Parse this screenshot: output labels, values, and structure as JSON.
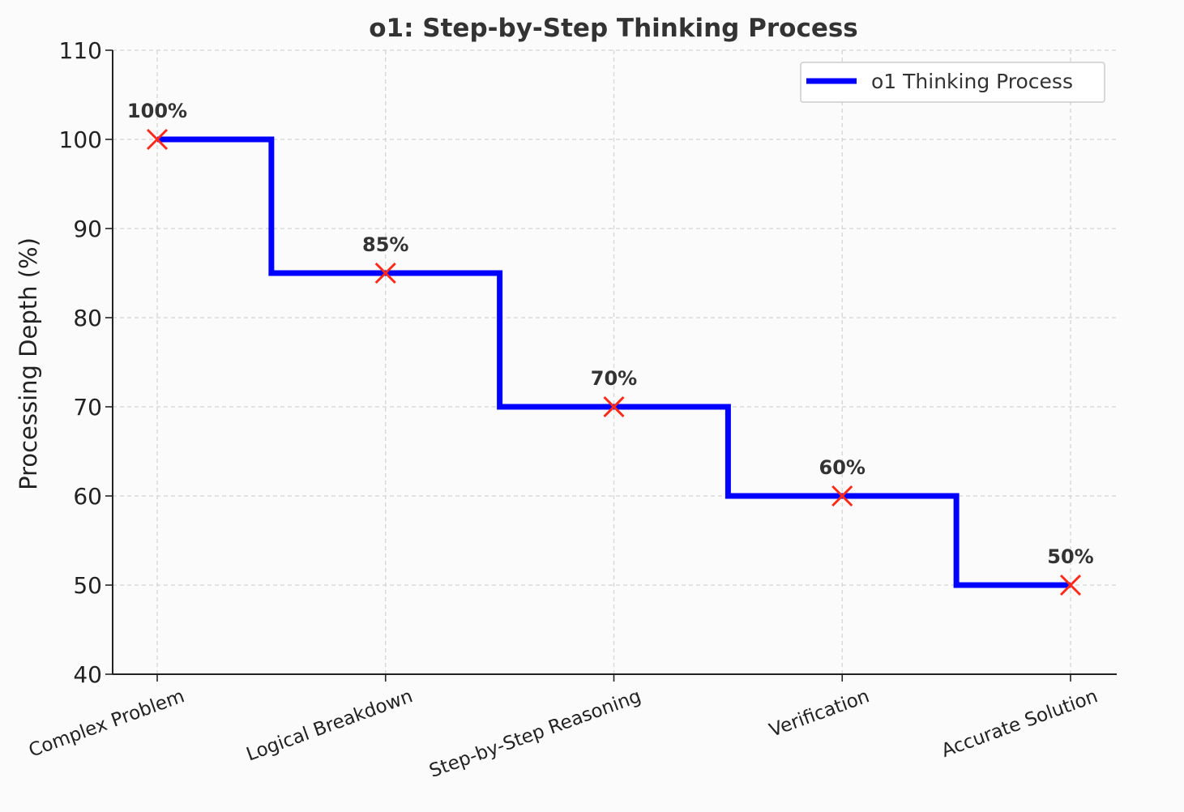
{
  "chart_data": {
    "type": "line",
    "title": "o1: Step-by-Step Thinking Process",
    "xlabel": "",
    "ylabel": "Processing Depth (%)",
    "categories": [
      "Complex Problem",
      "Logical Breakdown",
      "Step-by-Step Reasoning",
      "Verification",
      "Accurate Solution"
    ],
    "series": [
      {
        "name": "o1 Thinking Process",
        "values": [
          100,
          85,
          70,
          60,
          50
        ],
        "color": "#0000ff",
        "style": "step-mid",
        "marker": "x",
        "marker_color": "#ff2a1a"
      }
    ],
    "data_labels": [
      "100%",
      "85%",
      "70%",
      "60%",
      "50%"
    ],
    "ylim": [
      40,
      110
    ],
    "yticks": [
      40,
      50,
      60,
      70,
      80,
      90,
      100,
      110
    ],
    "grid": true,
    "legend_position": "top-right",
    "xtick_rotation": 20
  }
}
